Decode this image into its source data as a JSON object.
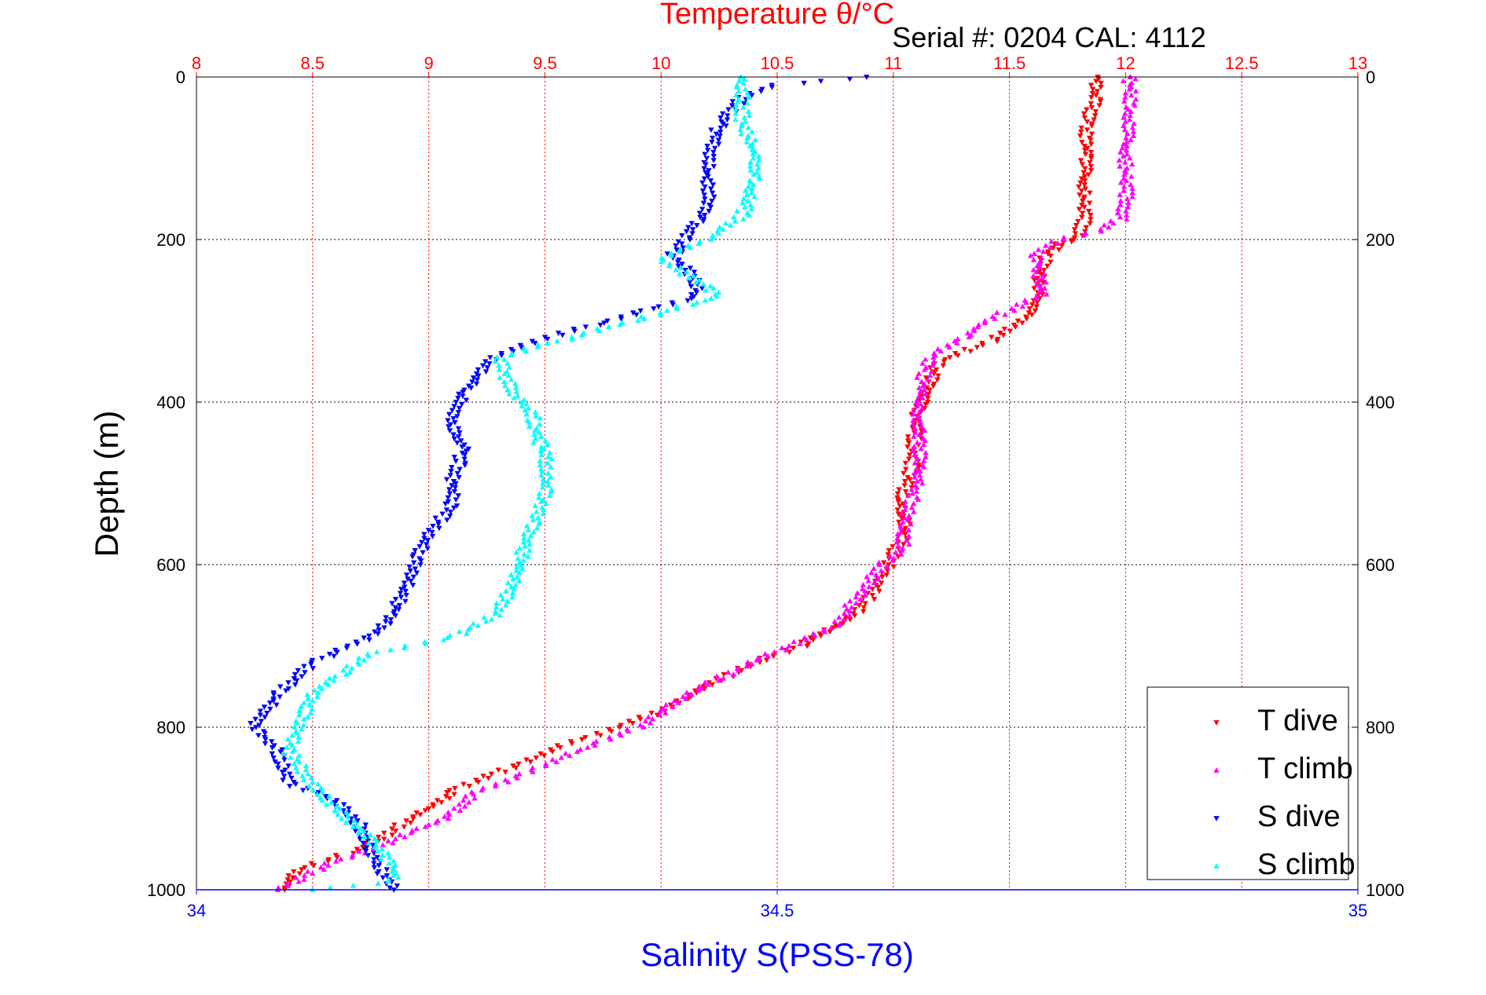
{
  "chart_data": {
    "type": "scatter",
    "title": "Temperature θ/°C",
    "subtitle": "Serial #: 0204  CAL: 4112",
    "ylabel": "Depth (m)",
    "xlabel": "Salinity S(PSS-78)",
    "y_axis": {
      "range": [
        0,
        1000
      ],
      "reversed": true,
      "ticks": [
        0,
        200,
        400,
        600,
        800,
        1000
      ]
    },
    "x_axis_top": {
      "quantity": "Temperature",
      "range": [
        8,
        13
      ],
      "ticks": [
        8,
        8.5,
        9,
        9.5,
        10,
        10.5,
        11,
        11.5,
        12,
        12.5,
        13
      ],
      "tick_labels": [
        "8",
        "8.5",
        "9",
        "9.5",
        "10",
        "10.5",
        "11",
        "11.5",
        "12",
        "12.5",
        "13"
      ],
      "color": "#ff0000",
      "grid": true
    },
    "x_axis_bottom": {
      "quantity": "Salinity",
      "range": [
        34,
        35
      ],
      "ticks": [
        34,
        34.5,
        35
      ],
      "tick_labels": [
        "34",
        "34.5",
        "35"
      ],
      "color": "#0000ff"
    },
    "grid": true,
    "legend_position": "bottom-right",
    "series": [
      {
        "name": "T dive",
        "axis": "top",
        "color": "#ff0000",
        "marker": "triangle-down",
        "points": [
          [
            11.88,
            0
          ],
          [
            11.87,
            30
          ],
          [
            11.83,
            60
          ],
          [
            11.83,
            100
          ],
          [
            11.82,
            150
          ],
          [
            11.82,
            180
          ],
          [
            11.78,
            200
          ],
          [
            11.72,
            205
          ],
          [
            11.65,
            225
          ],
          [
            11.63,
            250
          ],
          [
            11.62,
            275
          ],
          [
            11.58,
            295
          ],
          [
            11.42,
            325
          ],
          [
            11.2,
            350
          ],
          [
            11.15,
            380
          ],
          [
            11.1,
            420
          ],
          [
            11.08,
            480
          ],
          [
            11.03,
            520
          ],
          [
            11.05,
            560
          ],
          [
            10.98,
            600
          ],
          [
            10.95,
            620
          ],
          [
            10.9,
            640
          ],
          [
            10.82,
            665
          ],
          [
            10.6,
            700
          ],
          [
            10.4,
            720
          ],
          [
            10.1,
            765
          ],
          [
            10.0,
            780
          ],
          [
            9.82,
            800
          ],
          [
            9.6,
            820
          ],
          [
            9.45,
            840
          ],
          [
            9.25,
            860
          ],
          [
            9.1,
            880
          ],
          [
            9.0,
            900
          ],
          [
            8.88,
            920
          ],
          [
            8.78,
            940
          ],
          [
            8.65,
            955
          ],
          [
            8.55,
            965
          ],
          [
            8.45,
            975
          ],
          [
            8.4,
            985
          ],
          [
            8.38,
            1000
          ]
        ]
      },
      {
        "name": "T climb",
        "axis": "top",
        "color": "#ff00ff",
        "marker": "triangle-up",
        "points": [
          [
            12.02,
            0
          ],
          [
            12.02,
            40
          ],
          [
            12.0,
            100
          ],
          [
            12.0,
            160
          ],
          [
            11.98,
            175
          ],
          [
            11.88,
            190
          ],
          [
            11.72,
            200
          ],
          [
            11.65,
            210
          ],
          [
            11.62,
            220
          ],
          [
            11.62,
            240
          ],
          [
            11.65,
            265
          ],
          [
            11.55,
            280
          ],
          [
            11.4,
            300
          ],
          [
            11.3,
            320
          ],
          [
            11.15,
            345
          ],
          [
            11.12,
            380
          ],
          [
            11.1,
            420
          ],
          [
            11.12,
            480
          ],
          [
            11.08,
            520
          ],
          [
            11.05,
            555
          ],
          [
            11.04,
            580
          ],
          [
            10.95,
            600
          ],
          [
            10.9,
            620
          ],
          [
            10.82,
            650
          ],
          [
            10.75,
            675
          ],
          [
            10.55,
            700
          ],
          [
            10.35,
            725
          ],
          [
            10.15,
            755
          ],
          [
            9.98,
            785
          ],
          [
            9.9,
            800
          ],
          [
            9.72,
            820
          ],
          [
            9.55,
            840
          ],
          [
            9.4,
            860
          ],
          [
            9.2,
            880
          ],
          [
            9.12,
            900
          ],
          [
            9.05,
            915
          ],
          [
            8.9,
            930
          ],
          [
            8.8,
            945
          ],
          [
            8.7,
            955
          ],
          [
            8.6,
            965
          ],
          [
            8.52,
            975
          ],
          [
            8.45,
            985
          ],
          [
            8.35,
            1000
          ]
        ]
      },
      {
        "name": "S dive",
        "axis": "bottom",
        "color": "#0000ff",
        "marker": "triangle-down",
        "points": [
          [
            34.58,
            0
          ],
          [
            34.5,
            10
          ],
          [
            34.47,
            25
          ],
          [
            34.45,
            60
          ],
          [
            34.44,
            110
          ],
          [
            34.44,
            160
          ],
          [
            34.42,
            200
          ],
          [
            34.41,
            220
          ],
          [
            34.43,
            250
          ],
          [
            34.43,
            270
          ],
          [
            34.38,
            290
          ],
          [
            34.33,
            310
          ],
          [
            34.28,
            330
          ],
          [
            34.25,
            350
          ],
          [
            34.23,
            390
          ],
          [
            34.22,
            420
          ],
          [
            34.23,
            460
          ],
          [
            34.22,
            500
          ],
          [
            34.22,
            530
          ],
          [
            34.2,
            560
          ],
          [
            34.19,
            590
          ],
          [
            34.18,
            630
          ],
          [
            34.17,
            660
          ],
          [
            34.15,
            690
          ],
          [
            34.1,
            720
          ],
          [
            34.07,
            760
          ],
          [
            34.05,
            800
          ],
          [
            34.07,
            830
          ],
          [
            34.08,
            870
          ],
          [
            34.12,
            890
          ],
          [
            34.14,
            920
          ],
          [
            34.15,
            950
          ],
          [
            34.16,
            980
          ],
          [
            34.17,
            1000
          ]
        ]
      },
      {
        "name": "S climb",
        "axis": "bottom",
        "color": "#00ffff",
        "marker": "triangle-up",
        "points": [
          [
            34.47,
            0
          ],
          [
            34.47,
            30
          ],
          [
            34.47,
            60
          ],
          [
            34.48,
            90
          ],
          [
            34.48,
            130
          ],
          [
            34.47,
            170
          ],
          [
            34.44,
            200
          ],
          [
            34.42,
            210
          ],
          [
            34.4,
            225
          ],
          [
            34.44,
            260
          ],
          [
            34.45,
            270
          ],
          [
            34.4,
            290
          ],
          [
            34.35,
            310
          ],
          [
            34.3,
            330
          ],
          [
            34.26,
            345
          ],
          [
            34.27,
            380
          ],
          [
            34.29,
            420
          ],
          [
            34.3,
            470
          ],
          [
            34.3,
            510
          ],
          [
            34.29,
            550
          ],
          [
            34.28,
            590
          ],
          [
            34.27,
            630
          ],
          [
            34.26,
            660
          ],
          [
            34.22,
            690
          ],
          [
            34.15,
            710
          ],
          [
            34.12,
            740
          ],
          [
            34.1,
            760
          ],
          [
            34.09,
            790
          ],
          [
            34.08,
            830
          ],
          [
            34.1,
            870
          ],
          [
            34.12,
            900
          ],
          [
            34.15,
            940
          ],
          [
            34.17,
            970
          ],
          [
            34.17,
            990
          ],
          [
            34.1,
            1000
          ]
        ]
      }
    ]
  }
}
